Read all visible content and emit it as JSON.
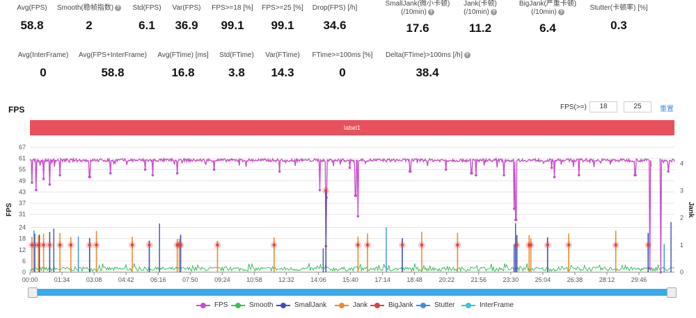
{
  "metrics_row1": [
    {
      "label": "Avg(FPS)",
      "value": "58.8",
      "help": false
    },
    {
      "label": "Smooth(稳帧指数)",
      "value": "2",
      "help": true
    },
    {
      "label": "Std(FPS)",
      "value": "6.1",
      "help": false
    },
    {
      "label": "Var(FPS)",
      "value": "36.9",
      "help": false
    },
    {
      "label": "FPS>=18 [%]",
      "value": "99.1",
      "help": false
    },
    {
      "label": "FPS>=25 [%]",
      "value": "99.1",
      "help": false
    },
    {
      "label": "Drop(FPS) [/h]",
      "value": "34.6",
      "help": false
    },
    {
      "label": "SmallJank(微小卡顿)",
      "label2": "(/10min)",
      "value": "17.6",
      "help": true
    },
    {
      "label": "Jank(卡顿)",
      "label2": "(/10min)",
      "value": "11.2",
      "help": true
    },
    {
      "label": "BigJank(严重卡顿)",
      "label2": "(/10min)",
      "value": "6.4",
      "help": true
    },
    {
      "label": "Stutter(卡顿率) [%]",
      "value": "0.3",
      "help": false
    }
  ],
  "metrics_row2": [
    {
      "label": "Avg(InterFrame)",
      "value": "0",
      "help": false
    },
    {
      "label": "Avg(FPS+InterFrame)",
      "value": "58.8",
      "help": false
    },
    {
      "label": "Avg(FTime) [ms]",
      "value": "16.8",
      "help": false
    },
    {
      "label": "Std(FTime)",
      "value": "3.8",
      "help": false
    },
    {
      "label": "Var(FTime)",
      "value": "14.3",
      "help": false
    },
    {
      "label": "FTime>=100ms [%]",
      "value": "0",
      "help": false
    },
    {
      "label": "Delta(FTime)>100ms [/h]",
      "value": "38.4",
      "help": true
    }
  ],
  "section_title": "FPS",
  "fps_threshold": {
    "label": "FPS(>=)",
    "value1": "18",
    "value2": "25",
    "reset_label": "重置"
  },
  "label_bar": "label1",
  "legend": [
    {
      "name": "FPS",
      "color": "#c94fc9"
    },
    {
      "name": "Smooth",
      "color": "#3cbf55"
    },
    {
      "name": "SmallJank",
      "color": "#3a4fb5"
    },
    {
      "name": "Jank",
      "color": "#f08a24"
    },
    {
      "name": "BigJank",
      "color": "#e04040"
    },
    {
      "name": "Stutter",
      "color": "#3a8ee6"
    },
    {
      "name": "InterFrame",
      "color": "#35c6dc"
    }
  ],
  "chart_data": {
    "type": "line",
    "ylabel": "FPS",
    "y2label": "Jank",
    "yticks": [
      0,
      6,
      12,
      18,
      24,
      31,
      37,
      43,
      49,
      55,
      61,
      67
    ],
    "y2ticks": [
      0,
      1,
      2,
      3,
      4
    ],
    "ylim": [
      0,
      67
    ],
    "y2lim": [
      0,
      4.6
    ],
    "xticks": [
      "00:00",
      "01:34",
      "03:08",
      "04:42",
      "06:16",
      "07:50",
      "09:24",
      "10:58",
      "12:32",
      "14:06",
      "15:40",
      "17:14",
      "18:48",
      "20:22",
      "21:56",
      "23:30",
      "25:04",
      "26:38",
      "28:12",
      "29:46"
    ],
    "x_range_seconds": [
      0,
      1890
    ],
    "fps_baseline": 60,
    "fps_dips": [
      {
        "t": 6,
        "v": 48
      },
      {
        "t": 18,
        "v": 44
      },
      {
        "t": 40,
        "v": 50
      },
      {
        "t": 58,
        "v": 47
      },
      {
        "t": 88,
        "v": 52
      },
      {
        "t": 175,
        "v": 51
      },
      {
        "t": 236,
        "v": 53
      },
      {
        "t": 338,
        "v": 55
      },
      {
        "t": 360,
        "v": 52
      },
      {
        "t": 432,
        "v": 53
      },
      {
        "t": 540,
        "v": 55
      },
      {
        "t": 732,
        "v": 54
      },
      {
        "t": 850,
        "v": 44
      },
      {
        "t": 868,
        "v": 14
      },
      {
        "t": 870,
        "v": 40
      },
      {
        "t": 938,
        "v": 56
      },
      {
        "t": 955,
        "v": 41
      },
      {
        "t": 962,
        "v": 30
      },
      {
        "t": 1115,
        "v": 54
      },
      {
        "t": 1220,
        "v": 55
      },
      {
        "t": 1295,
        "v": 53
      },
      {
        "t": 1308,
        "v": 52
      },
      {
        "t": 1390,
        "v": 52
      },
      {
        "t": 1420,
        "v": 34
      },
      {
        "t": 1425,
        "v": 28
      },
      {
        "t": 1530,
        "v": 56
      },
      {
        "t": 1538,
        "v": 51
      },
      {
        "t": 1610,
        "v": 52
      },
      {
        "t": 1775,
        "v": 52
      },
      {
        "t": 1818,
        "v": 2
      },
      {
        "t": 1826,
        "v": 55
      },
      {
        "t": 1850,
        "v": 0
      },
      {
        "t": 1872,
        "v": 54
      }
    ],
    "fps_gaps": [
      [
        1822,
        1846
      ]
    ],
    "events": [
      {
        "t": 6,
        "jank": 1
      },
      {
        "t": 14,
        "jank": 1
      },
      {
        "t": 25,
        "jank": 1
      },
      {
        "t": 40,
        "jank": 1
      },
      {
        "t": 58,
        "jank": 1
      },
      {
        "t": 88,
        "jank": 1
      },
      {
        "t": 120,
        "jank": 1
      },
      {
        "t": 175,
        "jank": 1
      },
      {
        "t": 195,
        "jank": 1
      },
      {
        "t": 300,
        "jank": 1
      },
      {
        "t": 350,
        "jank": 1
      },
      {
        "t": 432,
        "jank": 1
      },
      {
        "t": 438,
        "jank": 1
      },
      {
        "t": 442,
        "jank": 1
      },
      {
        "t": 550,
        "jank": 1
      },
      {
        "t": 716,
        "jank": 1
      },
      {
        "t": 868,
        "jank": 3
      },
      {
        "t": 962,
        "jank": 1
      },
      {
        "t": 990,
        "jank": 1
      },
      {
        "t": 1092,
        "jank": 1
      },
      {
        "t": 1149,
        "jank": 1
      },
      {
        "t": 1254,
        "jank": 1
      },
      {
        "t": 1428,
        "jank": 1
      },
      {
        "t": 1464,
        "jank": 1
      },
      {
        "t": 1469,
        "jank": 1
      },
      {
        "t": 1518,
        "jank": 1
      },
      {
        "t": 1580,
        "jank": 1
      },
      {
        "t": 1718,
        "jank": 1
      },
      {
        "t": 1813,
        "jank": 1
      }
    ]
  }
}
